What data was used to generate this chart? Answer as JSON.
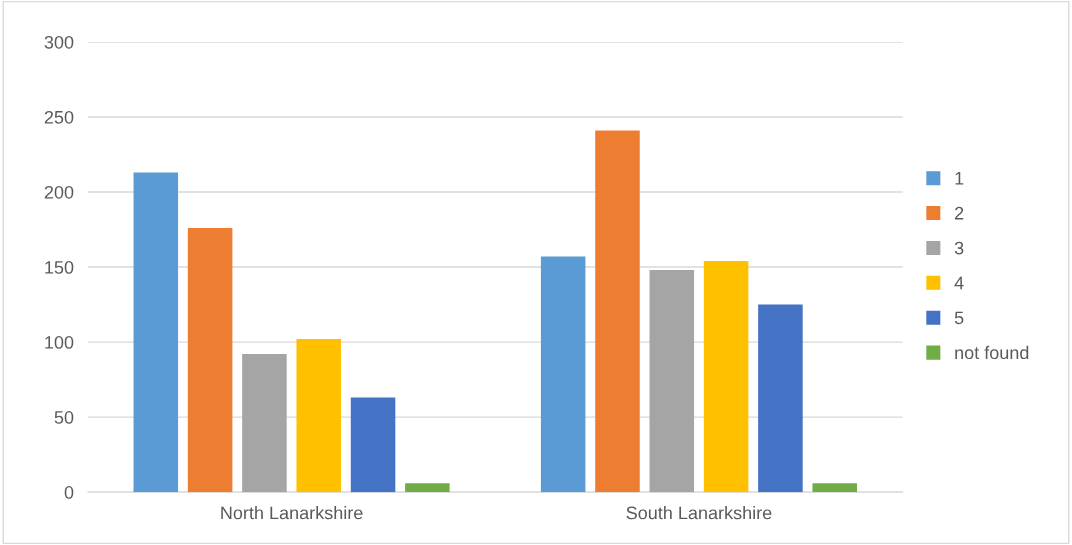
{
  "chart_data": {
    "type": "bar",
    "categories": [
      "North Lanarkshire",
      "South Lanarkshire"
    ],
    "series": [
      {
        "name": "1",
        "color": "#5b9bd5",
        "values": [
          213,
          157
        ]
      },
      {
        "name": "2",
        "color": "#ed7d31",
        "values": [
          176,
          241
        ]
      },
      {
        "name": "3",
        "color": "#a5a5a5",
        "values": [
          92,
          148
        ]
      },
      {
        "name": "4",
        "color": "#ffc000",
        "values": [
          102,
          154
        ]
      },
      {
        "name": "5",
        "color": "#4472c4",
        "values": [
          63,
          125
        ]
      },
      {
        "name": "not found",
        "color": "#70ad47",
        "values": [
          6,
          6
        ]
      }
    ],
    "ylim": [
      0,
      300
    ],
    "yticks": [
      0,
      50,
      100,
      150,
      200,
      250,
      300
    ],
    "grid": "y",
    "legend": "right"
  }
}
